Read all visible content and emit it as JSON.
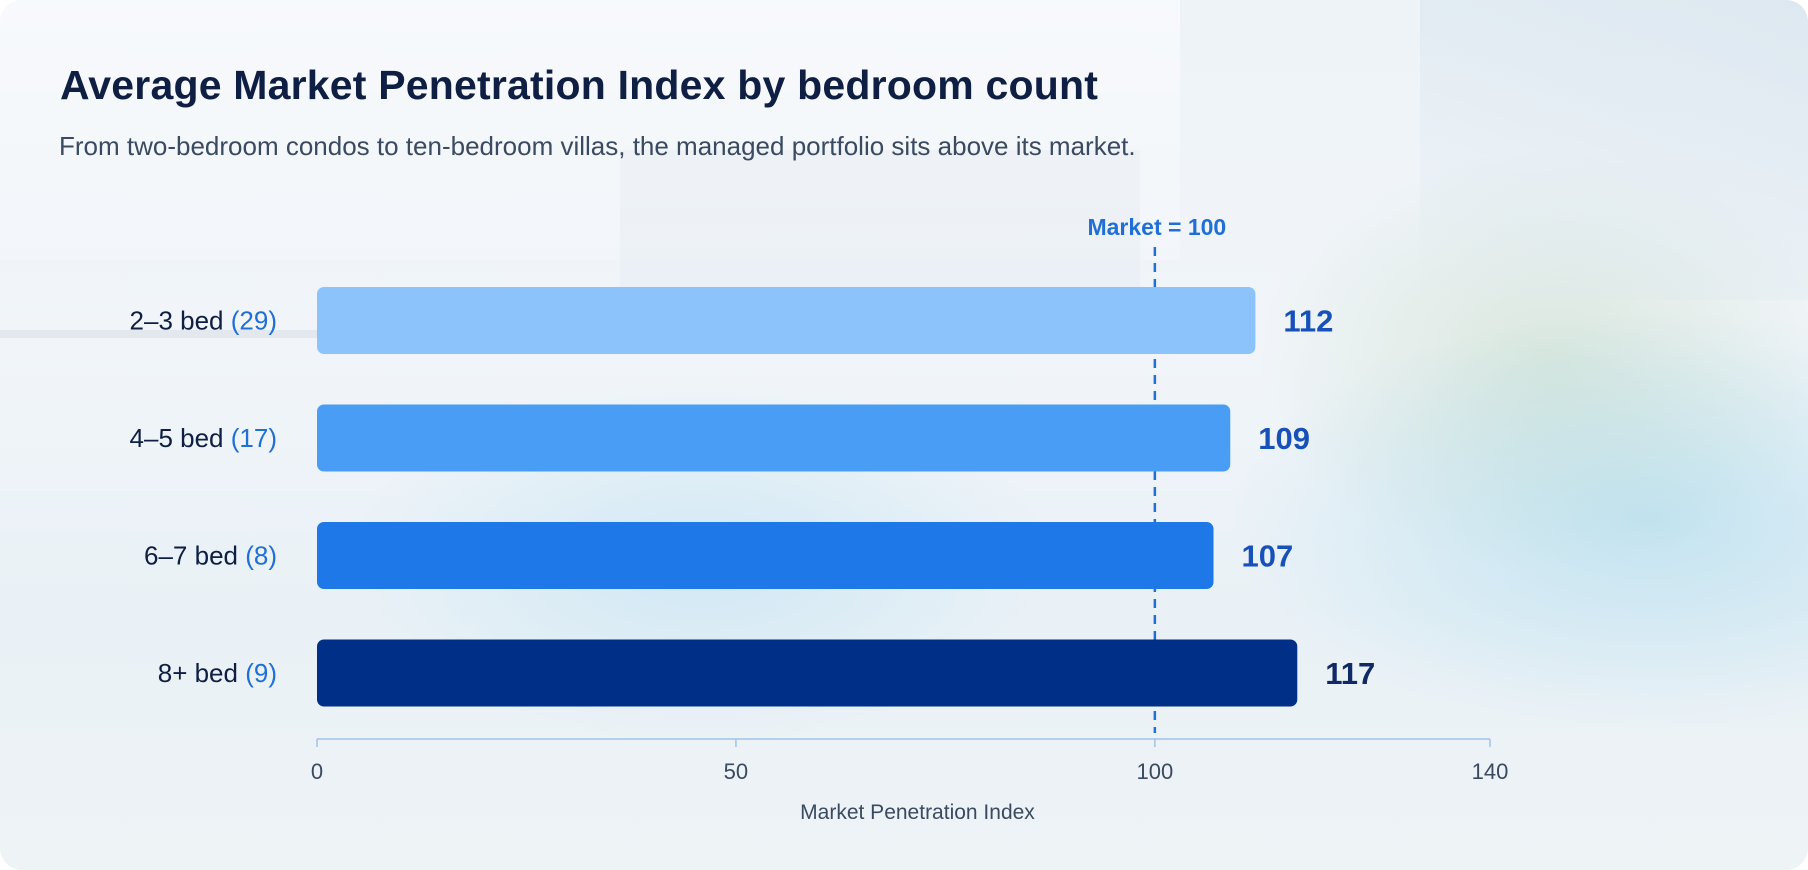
{
  "title": "Average Market Penetration Index by bedroom count",
  "subtitle": "From two-bedroom condos to ten-bedroom villas, the managed portfolio sits above its market.",
  "chart_data": {
    "type": "bar",
    "orientation": "horizontal",
    "categories": [
      "2–3 bed",
      "4–5 bed",
      "6–7 bed",
      "8+ bed"
    ],
    "category_counts": [
      "(29)",
      "(17)",
      "(8)",
      "(9)"
    ],
    "values": [
      112,
      109,
      107,
      117
    ],
    "data_labels": [
      "112",
      "109",
      "107",
      "117"
    ],
    "bar_colors": [
      "#8dc3fb",
      "#4a9df5",
      "#1f78e8",
      "#002f87"
    ],
    "label_color": "#1650b8",
    "xlabel": "Market Penetration Index",
    "xlim": [
      0,
      140
    ],
    "xticks": [
      0,
      50,
      100,
      140
    ],
    "xtick_labels": [
      "0",
      "50",
      "100",
      "140"
    ],
    "reference_line": {
      "value": 100,
      "label": "Market = 100",
      "color": "#1f6fd6"
    },
    "grid": false
  }
}
